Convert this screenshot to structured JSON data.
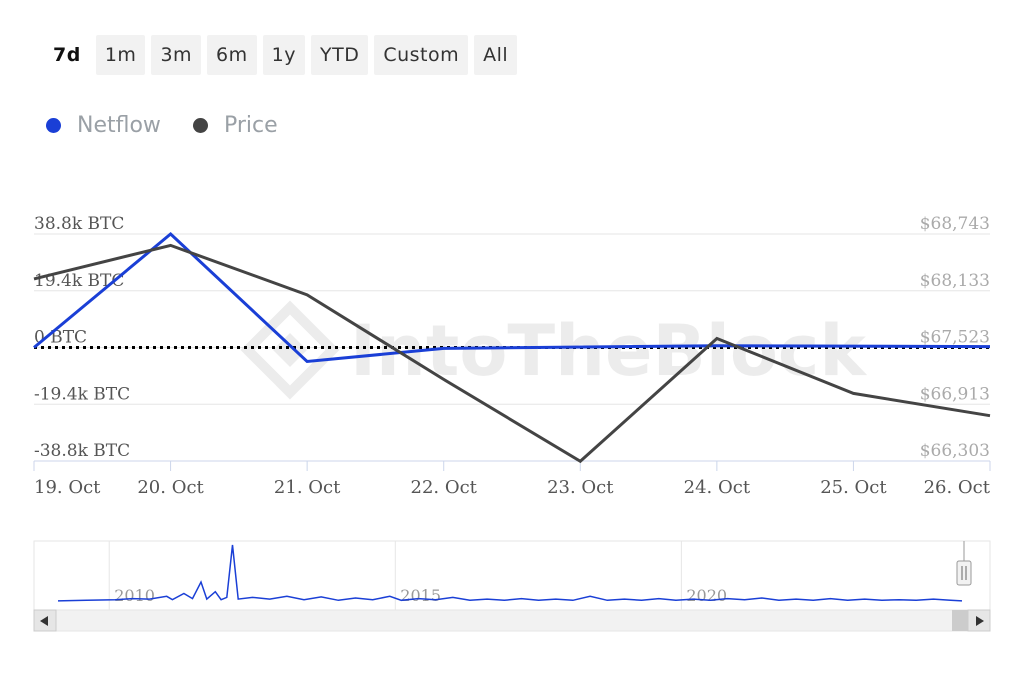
{
  "range_selector": {
    "buttons": [
      "7d",
      "1m",
      "3m",
      "6m",
      "1y",
      "YTD",
      "Custom",
      "All"
    ],
    "active": "7d"
  },
  "legend": {
    "items": [
      {
        "label": "Netflow",
        "color": "#1a3fd6"
      },
      {
        "label": "Price",
        "color": "#444444"
      }
    ]
  },
  "watermark": "IntoTheBlock",
  "colors": {
    "netflow": "#1a3fd6",
    "price": "#444444",
    "grid": "#e6e6e6",
    "axis": "#ccd6eb",
    "zero_line": "#000000",
    "navigator_series": "#1a3fd6",
    "navigator_bg": "#ffffff"
  },
  "chart_data": [
    {
      "type": "line",
      "x": [
        "19. Oct",
        "20. Oct",
        "21. Oct",
        "22. Oct",
        "23. Oct",
        "24. Oct",
        "25. Oct",
        "26. Oct"
      ],
      "y_left": {
        "ticks": [
          "38.8k BTC",
          "19.4k BTC",
          "0 BTC",
          "-19.4k BTC",
          "-38.8k BTC"
        ],
        "tick_values": [
          38800,
          19400,
          0,
          -19400,
          -38800
        ],
        "range": [
          -38800,
          38800
        ]
      },
      "y_right": {
        "ticks": [
          "$68,743",
          "$68,133",
          "$67,523",
          "$66,913",
          "$66,303"
        ],
        "tick_values": [
          68743,
          68133,
          67523,
          66913,
          66303
        ],
        "range": [
          66303,
          68743
        ]
      },
      "series": [
        {
          "name": "Netflow",
          "axis": "left",
          "points": [
            {
              "x": 0,
              "y": 0
            },
            {
              "x": 1,
              "y": 38800
            },
            {
              "x": 2,
              "y": -4800
            },
            {
              "x": 3,
              "y": -300
            },
            {
              "x": 5,
              "y": 600
            },
            {
              "x": 7,
              "y": 300
            }
          ]
        },
        {
          "name": "Price",
          "axis": "right",
          "points": [
            {
              "x": 0,
              "y": 68260
            },
            {
              "x": 1,
              "y": 68620
            },
            {
              "x": 2,
              "y": 68090
            },
            {
              "x": 3,
              "y": 67180
            },
            {
              "x": 4,
              "y": 66300
            },
            {
              "x": 5,
              "y": 67620
            },
            {
              "x": 6,
              "y": 67030
            },
            {
              "x": 7,
              "y": 66790
            }
          ]
        }
      ],
      "zero_line": {
        "value": 0,
        "style": "dotted"
      }
    },
    {
      "type": "line",
      "role": "navigator",
      "x_ticks": [
        "2010",
        "2015",
        "2020"
      ],
      "x_tick_values": [
        2010,
        2015,
        2020
      ],
      "x_range": [
        2009.0,
        2024.8
      ],
      "series": [
        {
          "name": "Netflow",
          "points": [
            [
              2009.0,
              0.02
            ],
            [
              2009.5,
              0.03
            ],
            [
              2010.0,
              0.04
            ],
            [
              2010.3,
              0.06
            ],
            [
              2010.6,
              0.05
            ],
            [
              2010.9,
              0.1
            ],
            [
              2011.0,
              0.04
            ],
            [
              2011.2,
              0.15
            ],
            [
              2011.35,
              0.06
            ],
            [
              2011.5,
              0.35
            ],
            [
              2011.6,
              0.05
            ],
            [
              2011.75,
              0.18
            ],
            [
              2011.85,
              0.04
            ],
            [
              2011.95,
              0.08
            ],
            [
              2012.05,
              1.0
            ],
            [
              2012.15,
              0.05
            ],
            [
              2012.4,
              0.08
            ],
            [
              2012.7,
              0.05
            ],
            [
              2013.0,
              0.1
            ],
            [
              2013.3,
              0.04
            ],
            [
              2013.6,
              0.09
            ],
            [
              2013.9,
              0.03
            ],
            [
              2014.2,
              0.07
            ],
            [
              2014.5,
              0.04
            ],
            [
              2014.8,
              0.1
            ],
            [
              2015.0,
              0.03
            ],
            [
              2015.3,
              0.06
            ],
            [
              2015.6,
              0.04
            ],
            [
              2015.9,
              0.08
            ],
            [
              2016.2,
              0.03
            ],
            [
              2016.5,
              0.05
            ],
            [
              2016.8,
              0.03
            ],
            [
              2017.1,
              0.06
            ],
            [
              2017.4,
              0.03
            ],
            [
              2017.7,
              0.05
            ],
            [
              2018.0,
              0.03
            ],
            [
              2018.3,
              0.1
            ],
            [
              2018.6,
              0.03
            ],
            [
              2018.9,
              0.05
            ],
            [
              2019.2,
              0.03
            ],
            [
              2019.5,
              0.06
            ],
            [
              2019.8,
              0.03
            ],
            [
              2020.1,
              0.05
            ],
            [
              2020.4,
              0.03
            ],
            [
              2020.7,
              0.06
            ],
            [
              2021.0,
              0.04
            ],
            [
              2021.3,
              0.07
            ],
            [
              2021.6,
              0.03
            ],
            [
              2021.9,
              0.05
            ],
            [
              2022.2,
              0.03
            ],
            [
              2022.5,
              0.06
            ],
            [
              2022.8,
              0.03
            ],
            [
              2023.1,
              0.05
            ],
            [
              2023.4,
              0.03
            ],
            [
              2023.7,
              0.04
            ],
            [
              2024.0,
              0.03
            ],
            [
              2024.3,
              0.05
            ],
            [
              2024.6,
              0.03
            ],
            [
              2024.8,
              0.02
            ]
          ]
        }
      ]
    }
  ]
}
